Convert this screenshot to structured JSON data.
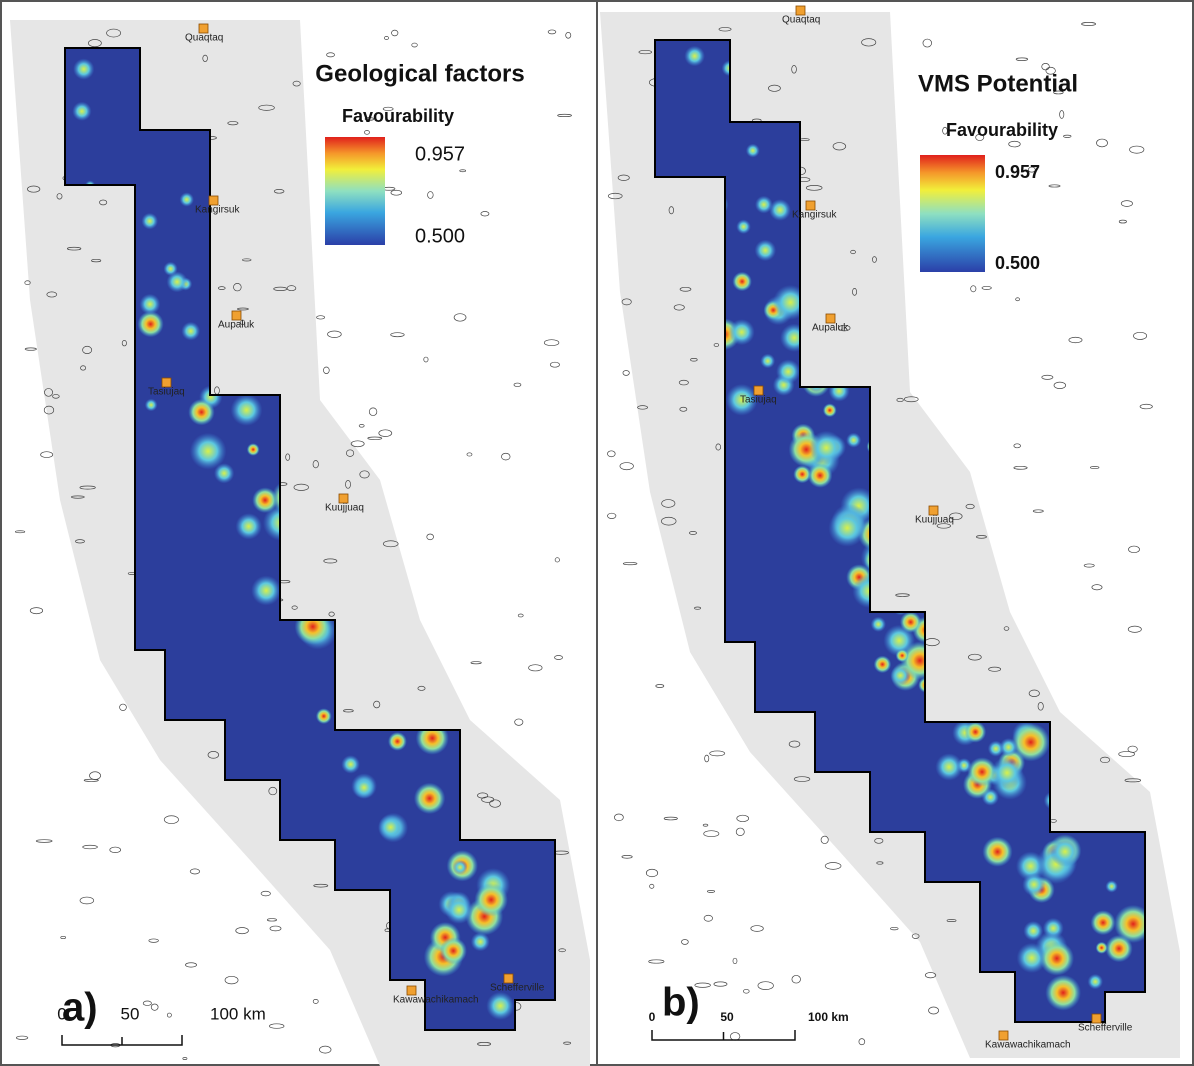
{
  "panels": [
    {
      "letter": "a)",
      "title": "Geological factors",
      "legend_title": "Favourability",
      "legend_max": "0.957",
      "legend_min": "0.500",
      "places": [
        "Quaqtaq",
        "Kangirsuk",
        "Aupaluk",
        "Tasiujaq",
        "Kuujjuaq",
        "Kawawachikamach",
        "Schefferville"
      ],
      "scale": [
        "0",
        "50",
        "100 km"
      ]
    },
    {
      "letter": "b)",
      "title": "VMS Potential",
      "legend_title": "Favourability",
      "legend_max": "0.957",
      "legend_min": "0.500",
      "places": [
        "Quaqtaq",
        "Kangirsuk",
        "Aupaluk",
        "Tasiujaq",
        "Kuujjuaq",
        "Kawawachikamach",
        "Schefferville"
      ],
      "scale": [
        "0",
        "50",
        "100 km"
      ]
    }
  ]
}
